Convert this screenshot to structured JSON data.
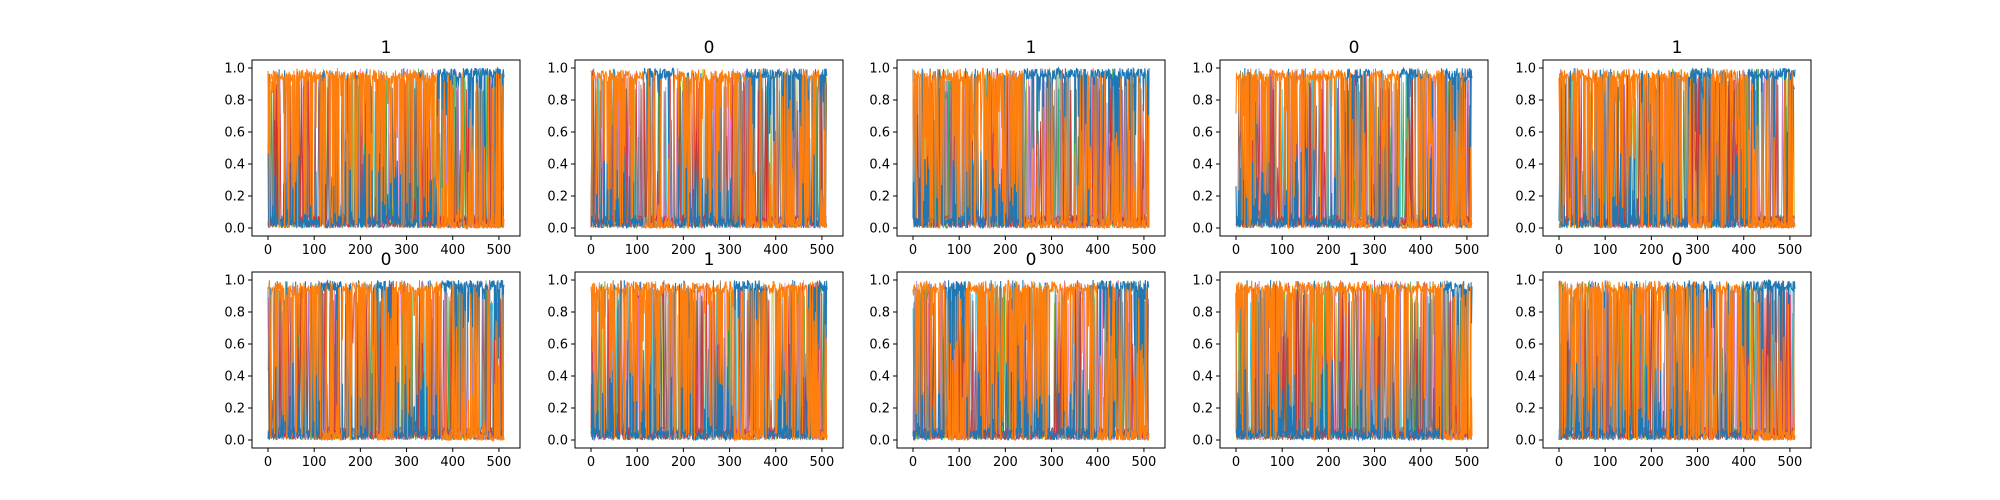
{
  "colors": {
    "series_a": "#1f77b4",
    "series_b": "#ff7f0e",
    "accents": [
      "#17becf",
      "#bcbd22",
      "#2ca02c",
      "#9467bd",
      "#e377c2",
      "#8c564b",
      "#7f7f7f",
      "#d62728"
    ]
  },
  "chart_data": [
    {
      "type": "line",
      "title": "1",
      "grid": false,
      "xlim": [
        0,
        511
      ],
      "ylim": [
        0,
        1
      ],
      "x_ticks": [
        0,
        100,
        200,
        300,
        400,
        500
      ],
      "y_ticks": [
        0.0,
        0.2,
        0.4,
        0.6,
        0.8,
        1.0
      ],
      "x_tick_labels": [
        "0",
        "100",
        "200",
        "300",
        "400",
        "500"
      ],
      "y_tick_labels": [
        "0.0",
        "0.2",
        "0.4",
        "0.6",
        "0.8",
        "1.0"
      ],
      "dominant_series_segments": [
        {
          "x_range": [
            0,
            365
          ],
          "dominant": "series_b"
        },
        {
          "x_range": [
            365,
            511
          ],
          "dominant": "series_a"
        }
      ]
    },
    {
      "type": "line",
      "title": "0",
      "grid": false,
      "xlim": [
        0,
        511
      ],
      "ylim": [
        0,
        1
      ],
      "x_ticks": [
        0,
        100,
        200,
        300,
        400,
        500
      ],
      "y_ticks": [
        0.0,
        0.2,
        0.4,
        0.6,
        0.8,
        1.0
      ],
      "x_tick_labels": [
        "0",
        "100",
        "200",
        "300",
        "400",
        "500"
      ],
      "y_tick_labels": [
        "0.0",
        "0.2",
        "0.4",
        "0.6",
        "0.8",
        "1.0"
      ],
      "dominant_series_segments": [
        {
          "x_range": [
            0,
            115
          ],
          "dominant": "series_b"
        },
        {
          "x_range": [
            115,
            180
          ],
          "dominant": "series_a"
        },
        {
          "x_range": [
            180,
            335
          ],
          "dominant": "series_b"
        },
        {
          "x_range": [
            335,
            460
          ],
          "dominant": "series_a"
        },
        {
          "x_range": [
            460,
            495
          ],
          "dominant": "series_b"
        },
        {
          "x_range": [
            495,
            511
          ],
          "dominant": "series_a"
        }
      ]
    },
    {
      "type": "line",
      "title": "1",
      "grid": false,
      "xlim": [
        0,
        511
      ],
      "ylim": [
        0,
        1
      ],
      "x_ticks": [
        0,
        100,
        200,
        300,
        400,
        500
      ],
      "y_ticks": [
        0.0,
        0.2,
        0.4,
        0.6,
        0.8,
        1.0
      ],
      "x_tick_labels": [
        "0",
        "100",
        "200",
        "300",
        "400",
        "500"
      ],
      "y_tick_labels": [
        "0.0",
        "0.2",
        "0.4",
        "0.6",
        "0.8",
        "1.0"
      ],
      "dominant_series_segments": [
        {
          "x_range": [
            0,
            240
          ],
          "dominant": "series_b"
        },
        {
          "x_range": [
            240,
            270
          ],
          "dominant": "series_a"
        },
        {
          "x_range": [
            270,
            511
          ],
          "dominant": "series_a"
        }
      ]
    },
    {
      "type": "line",
      "title": "0",
      "grid": false,
      "xlim": [
        0,
        511
      ],
      "ylim": [
        0,
        1
      ],
      "x_ticks": [
        0,
        100,
        200,
        300,
        400,
        500
      ],
      "y_ticks": [
        0.0,
        0.2,
        0.4,
        0.6,
        0.8,
        1.0
      ],
      "x_tick_labels": [
        "0",
        "100",
        "200",
        "300",
        "400",
        "500"
      ],
      "y_tick_labels": [
        "0.0",
        "0.2",
        "0.4",
        "0.6",
        "0.8",
        "1.0"
      ],
      "dominant_series_segments": [
        {
          "x_range": [
            0,
            240
          ],
          "dominant": "series_b"
        },
        {
          "x_range": [
            240,
            290
          ],
          "dominant": "series_a"
        },
        {
          "x_range": [
            290,
            355
          ],
          "dominant": "series_b"
        },
        {
          "x_range": [
            355,
            395
          ],
          "dominant": "series_a"
        },
        {
          "x_range": [
            395,
            450
          ],
          "dominant": "series_b"
        },
        {
          "x_range": [
            450,
            511
          ],
          "dominant": "series_a"
        }
      ]
    },
    {
      "type": "line",
      "title": "1",
      "grid": false,
      "xlim": [
        0,
        511
      ],
      "ylim": [
        0,
        1
      ],
      "x_ticks": [
        0,
        100,
        200,
        300,
        400,
        500
      ],
      "y_ticks": [
        0.0,
        0.2,
        0.4,
        0.6,
        0.8,
        1.0
      ],
      "x_tick_labels": [
        "0",
        "100",
        "200",
        "300",
        "400",
        "500"
      ],
      "y_tick_labels": [
        "0.0",
        "0.2",
        "0.4",
        "0.6",
        "0.8",
        "1.0"
      ],
      "dominant_series_segments": [
        {
          "x_range": [
            0,
            280
          ],
          "dominant": "series_b"
        },
        {
          "x_range": [
            280,
            330
          ],
          "dominant": "series_a"
        },
        {
          "x_range": [
            330,
            410
          ],
          "dominant": "series_b"
        },
        {
          "x_range": [
            410,
            511
          ],
          "dominant": "series_a"
        }
      ]
    },
    {
      "type": "line",
      "title": "0",
      "grid": false,
      "xlim": [
        0,
        511
      ],
      "ylim": [
        0,
        1
      ],
      "x_ticks": [
        0,
        100,
        200,
        300,
        400,
        500
      ],
      "y_ticks": [
        0.0,
        0.2,
        0.4,
        0.6,
        0.8,
        1.0
      ],
      "x_tick_labels": [
        "0",
        "100",
        "200",
        "300",
        "400",
        "500"
      ],
      "y_tick_labels": [
        "0.0",
        "0.2",
        "0.4",
        "0.6",
        "0.8",
        "1.0"
      ],
      "dominant_series_segments": [
        {
          "x_range": [
            0,
            115
          ],
          "dominant": "series_b"
        },
        {
          "x_range": [
            115,
            160
          ],
          "dominant": "series_a"
        },
        {
          "x_range": [
            160,
            235
          ],
          "dominant": "series_b"
        },
        {
          "x_range": [
            235,
            270
          ],
          "dominant": "series_a"
        },
        {
          "x_range": [
            270,
            375
          ],
          "dominant": "series_b"
        },
        {
          "x_range": [
            375,
            511
          ],
          "dominant": "series_a"
        }
      ]
    },
    {
      "type": "line",
      "title": "1",
      "grid": false,
      "xlim": [
        0,
        511
      ],
      "ylim": [
        0,
        1
      ],
      "x_ticks": [
        0,
        100,
        200,
        300,
        400,
        500
      ],
      "y_ticks": [
        0.0,
        0.2,
        0.4,
        0.6,
        0.8,
        1.0
      ],
      "x_tick_labels": [
        "0",
        "100",
        "200",
        "300",
        "400",
        "500"
      ],
      "y_tick_labels": [
        "0.0",
        "0.2",
        "0.4",
        "0.6",
        "0.8",
        "1.0"
      ],
      "dominant_series_segments": [
        {
          "x_range": [
            0,
            310
          ],
          "dominant": "series_b"
        },
        {
          "x_range": [
            310,
            375
          ],
          "dominant": "series_a"
        },
        {
          "x_range": [
            375,
            470
          ],
          "dominant": "series_b"
        },
        {
          "x_range": [
            470,
            511
          ],
          "dominant": "series_a"
        }
      ]
    },
    {
      "type": "line",
      "title": "0",
      "grid": false,
      "xlim": [
        0,
        511
      ],
      "ylim": [
        0,
        1
      ],
      "x_ticks": [
        0,
        100,
        200,
        300,
        400,
        500
      ],
      "y_ticks": [
        0.0,
        0.2,
        0.4,
        0.6,
        0.8,
        1.0
      ],
      "x_tick_labels": [
        "0",
        "100",
        "200",
        "300",
        "400",
        "500"
      ],
      "y_tick_labels": [
        "0.0",
        "0.2",
        "0.4",
        "0.6",
        "0.8",
        "1.0"
      ],
      "dominant_series_segments": [
        {
          "x_range": [
            0,
            70
          ],
          "dominant": "series_b"
        },
        {
          "x_range": [
            70,
            110
          ],
          "dominant": "series_a"
        },
        {
          "x_range": [
            110,
            400
          ],
          "dominant": "series_b"
        },
        {
          "x_range": [
            400,
            511
          ],
          "dominant": "series_a"
        }
      ]
    },
    {
      "type": "line",
      "title": "1",
      "grid": false,
      "xlim": [
        0,
        511
      ],
      "ylim": [
        0,
        1
      ],
      "x_ticks": [
        0,
        100,
        200,
        300,
        400,
        500
      ],
      "y_ticks": [
        0.0,
        0.2,
        0.4,
        0.6,
        0.8,
        1.0
      ],
      "x_tick_labels": [
        "0",
        "100",
        "200",
        "300",
        "400",
        "500"
      ],
      "y_tick_labels": [
        "0.0",
        "0.2",
        "0.4",
        "0.6",
        "0.8",
        "1.0"
      ],
      "dominant_series_segments": [
        {
          "x_range": [
            0,
            450
          ],
          "dominant": "series_b"
        },
        {
          "x_range": [
            450,
            511
          ],
          "dominant": "series_a"
        }
      ]
    },
    {
      "type": "line",
      "title": "0",
      "grid": false,
      "xlim": [
        0,
        511
      ],
      "ylim": [
        0,
        1
      ],
      "x_ticks": [
        0,
        100,
        200,
        300,
        400,
        500
      ],
      "y_ticks": [
        0.0,
        0.2,
        0.4,
        0.6,
        0.8,
        1.0
      ],
      "x_tick_labels": [
        "0",
        "100",
        "200",
        "300",
        "400",
        "500"
      ],
      "y_tick_labels": [
        "0.0",
        "0.2",
        "0.4",
        "0.6",
        "0.8",
        "1.0"
      ],
      "dominant_series_segments": [
        {
          "x_range": [
            0,
            280
          ],
          "dominant": "series_b"
        },
        {
          "x_range": [
            280,
            340
          ],
          "dominant": "series_a"
        },
        {
          "x_range": [
            340,
            395
          ],
          "dominant": "series_b"
        },
        {
          "x_range": [
            395,
            511
          ],
          "dominant": "series_a"
        }
      ]
    }
  ]
}
